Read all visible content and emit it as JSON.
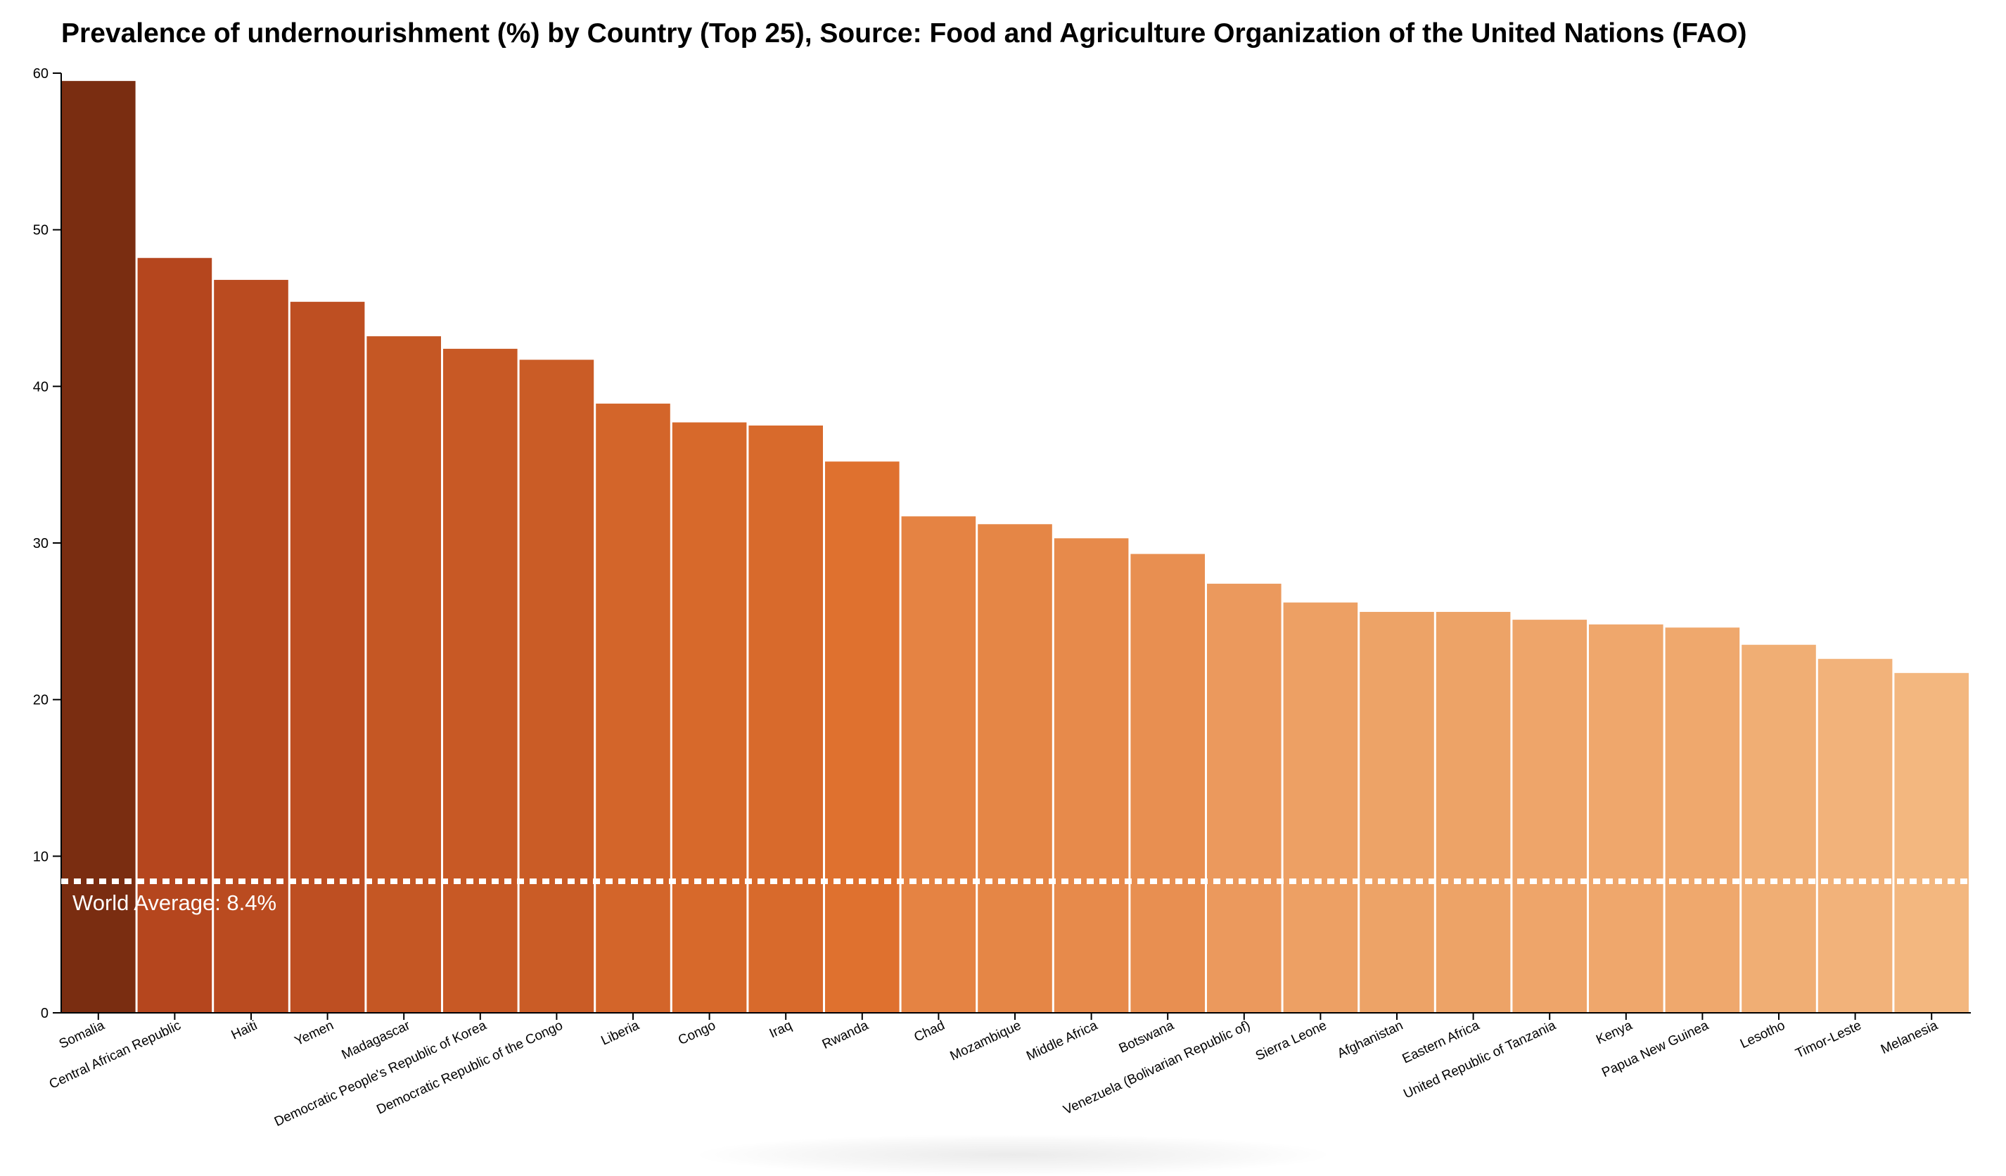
{
  "chart_data": {
    "type": "bar",
    "title": "Prevalence of undernourishment (%) by Country (Top 25), Source: Food and Agriculture Organization of the United Nations (FAO)",
    "xlabel": "",
    "ylabel": "",
    "ylim": [
      0,
      60
    ],
    "yticks": [
      0,
      10,
      20,
      30,
      40,
      50,
      60
    ],
    "grid": false,
    "legend": "none",
    "categories": [
      "Somalia",
      "Central African Republic",
      "Haiti",
      "Yemen",
      "Madagascar",
      "Democratic People's Republic of Korea",
      "Democratic Republic of the Congo",
      "Liberia",
      "Congo",
      "Iraq",
      "Rwanda",
      "Chad",
      "Mozambique",
      "Middle Africa",
      "Botswana",
      "Venezuela (Bolivarian Republic of)",
      "Sierra Leone",
      "Afghanistan",
      "Eastern Africa",
      "United Republic of Tanzania",
      "Kenya",
      "Papua New Guinea",
      "Lesotho",
      "Timor-Leste",
      "Melanesia"
    ],
    "values": [
      59.5,
      48.2,
      46.8,
      45.4,
      43.2,
      42.4,
      41.7,
      38.9,
      37.7,
      37.5,
      35.2,
      31.7,
      31.2,
      30.3,
      29.3,
      27.4,
      26.2,
      25.6,
      25.6,
      25.1,
      24.8,
      24.6,
      23.5,
      22.6,
      21.7
    ],
    "reference_line": {
      "value": 8.4,
      "label": "World Average: 8.4%",
      "color": "#ffffff",
      "style": "dashed"
    },
    "color_scale": {
      "dark": "#7a2d11",
      "high": "#b5461e",
      "mid": "#e0722f",
      "low": "#f3b77f"
    }
  }
}
